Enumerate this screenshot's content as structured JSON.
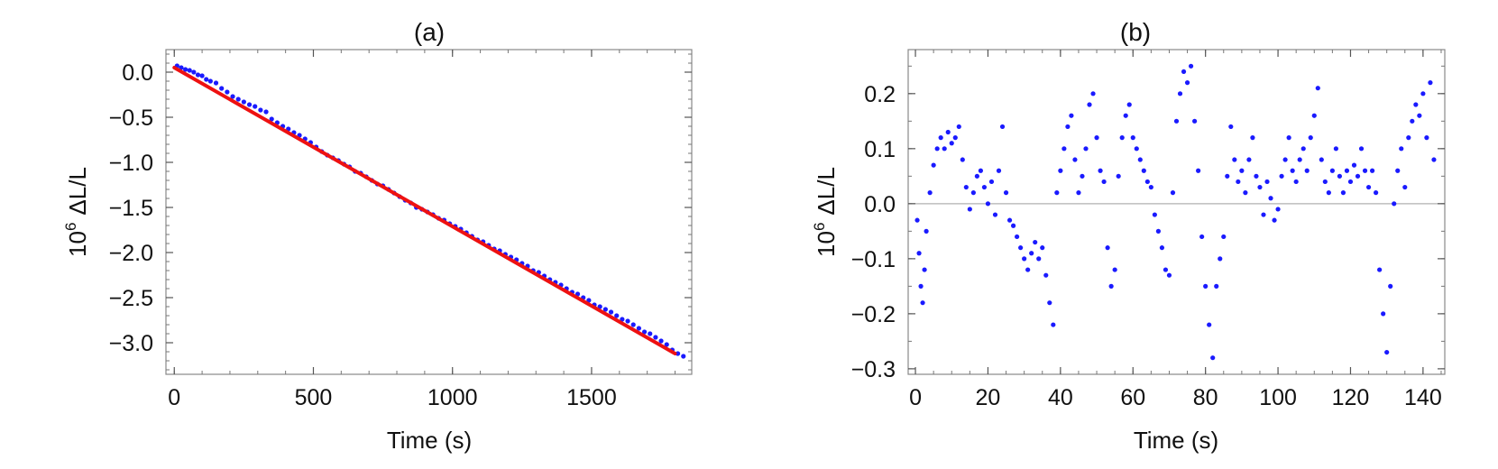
{
  "chart_data": [
    {
      "type": "scatter",
      "title": "(a)",
      "xlabel": "Time (s)",
      "ylabel": "10^6 ΔL/L",
      "ylabel_base": "10",
      "ylabel_exp": "6",
      "ylabel_rest": "ΔL/L",
      "xlim": [
        -30,
        1860
      ],
      "ylim": [
        -3.35,
        0.25
      ],
      "xticks": [
        0,
        500,
        1000,
        1500
      ],
      "xtick_labels": [
        "0",
        "500",
        "1000",
        "1500"
      ],
      "yticks": [
        0.0,
        -0.5,
        -1.0,
        -1.5,
        -2.0,
        -2.5,
        -3.0
      ],
      "ytick_labels": [
        "0.0",
        "−0.5",
        "−1.0",
        "−1.5",
        "−2.0",
        "−2.5",
        "−3.0"
      ],
      "grid": false,
      "frame": true,
      "series": [
        {
          "kind": "points",
          "color": "#1a1aff",
          "points": [
            [
              10,
              0.07
            ],
            [
              25,
              0.05
            ],
            [
              40,
              0.03
            ],
            [
              55,
              0.02
            ],
            [
              70,
              0.0
            ],
            [
              85,
              -0.03
            ],
            [
              100,
              -0.04
            ],
            [
              115,
              -0.08
            ],
            [
              130,
              -0.1
            ],
            [
              150,
              -0.12
            ],
            [
              170,
              -0.18
            ],
            [
              190,
              -0.22
            ],
            [
              210,
              -0.27
            ],
            [
              230,
              -0.3
            ],
            [
              250,
              -0.33
            ],
            [
              270,
              -0.36
            ],
            [
              290,
              -0.38
            ],
            [
              310,
              -0.42
            ],
            [
              330,
              -0.44
            ],
            [
              350,
              -0.52
            ],
            [
              370,
              -0.56
            ],
            [
              390,
              -0.6
            ],
            [
              410,
              -0.63
            ],
            [
              430,
              -0.67
            ],
            [
              450,
              -0.7
            ],
            [
              470,
              -0.74
            ],
            [
              490,
              -0.78
            ],
            [
              510,
              -0.83
            ],
            [
              530,
              -0.88
            ],
            [
              550,
              -0.92
            ],
            [
              570,
              -0.95
            ],
            [
              590,
              -0.98
            ],
            [
              610,
              -1.02
            ],
            [
              630,
              -1.05
            ],
            [
              650,
              -1.1
            ],
            [
              670,
              -1.12
            ],
            [
              690,
              -1.16
            ],
            [
              710,
              -1.2
            ],
            [
              730,
              -1.24
            ],
            [
              750,
              -1.26
            ],
            [
              770,
              -1.3
            ],
            [
              790,
              -1.34
            ],
            [
              810,
              -1.38
            ],
            [
              830,
              -1.42
            ],
            [
              850,
              -1.45
            ],
            [
              870,
              -1.5
            ],
            [
              890,
              -1.52
            ],
            [
              910,
              -1.55
            ],
            [
              930,
              -1.58
            ],
            [
              950,
              -1.62
            ],
            [
              970,
              -1.64
            ],
            [
              990,
              -1.68
            ],
            [
              1010,
              -1.71
            ],
            [
              1030,
              -1.74
            ],
            [
              1050,
              -1.78
            ],
            [
              1070,
              -1.82
            ],
            [
              1090,
              -1.86
            ],
            [
              1110,
              -1.88
            ],
            [
              1130,
              -1.92
            ],
            [
              1150,
              -1.96
            ],
            [
              1170,
              -1.98
            ],
            [
              1190,
              -2.02
            ],
            [
              1210,
              -2.05
            ],
            [
              1230,
              -2.08
            ],
            [
              1250,
              -2.12
            ],
            [
              1270,
              -2.15
            ],
            [
              1290,
              -2.2
            ],
            [
              1310,
              -2.22
            ],
            [
              1330,
              -2.26
            ],
            [
              1350,
              -2.3
            ],
            [
              1370,
              -2.33
            ],
            [
              1390,
              -2.36
            ],
            [
              1410,
              -2.4
            ],
            [
              1430,
              -2.44
            ],
            [
              1450,
              -2.46
            ],
            [
              1470,
              -2.5
            ],
            [
              1490,
              -2.53
            ],
            [
              1510,
              -2.58
            ],
            [
              1530,
              -2.6
            ],
            [
              1550,
              -2.63
            ],
            [
              1570,
              -2.66
            ],
            [
              1590,
              -2.7
            ],
            [
              1610,
              -2.74
            ],
            [
              1630,
              -2.76
            ],
            [
              1650,
              -2.8
            ],
            [
              1670,
              -2.84
            ],
            [
              1690,
              -2.88
            ],
            [
              1710,
              -2.9
            ],
            [
              1730,
              -2.94
            ],
            [
              1750,
              -2.98
            ],
            [
              1770,
              -3.02
            ],
            [
              1790,
              -3.08
            ],
            [
              1810,
              -3.12
            ],
            [
              1830,
              -3.15
            ]
          ]
        },
        {
          "kind": "fit-line",
          "color": "#ee1111",
          "x": [
            0,
            1800
          ],
          "y": [
            0.05,
            -3.12
          ]
        }
      ]
    },
    {
      "type": "scatter",
      "title": "(b)",
      "xlabel": "Time (s)",
      "ylabel": "10^6 ΔL/L",
      "ylabel_base": "10",
      "ylabel_exp": "6",
      "ylabel_rest": "ΔL/L",
      "xlim": [
        -2,
        146
      ],
      "ylim": [
        -0.31,
        0.28
      ],
      "xticks": [
        0,
        20,
        40,
        60,
        80,
        100,
        120,
        140
      ],
      "xtick_labels": [
        "0",
        "20",
        "40",
        "60",
        "80",
        "100",
        "120",
        "140"
      ],
      "yticks": [
        0.2,
        0.1,
        0.0,
        -0.1,
        -0.2,
        -0.3
      ],
      "ytick_labels": [
        "0.2",
        "0.1",
        "0.0",
        "−0.1",
        "−0.2",
        "−0.3"
      ],
      "reference_line": 0.0,
      "grid": false,
      "frame": true,
      "series": [
        {
          "kind": "points",
          "color": "#1a1aff",
          "points": [
            [
              0.5,
              -0.03
            ],
            [
              1,
              -0.09
            ],
            [
              1.5,
              -0.15
            ],
            [
              2,
              -0.18
            ],
            [
              2.5,
              -0.12
            ],
            [
              3,
              -0.05
            ],
            [
              4,
              0.02
            ],
            [
              5,
              0.07
            ],
            [
              6,
              0.1
            ],
            [
              7,
              0.12
            ],
            [
              8,
              0.1
            ],
            [
              9,
              0.13
            ],
            [
              10,
              0.11
            ],
            [
              11,
              0.12
            ],
            [
              12,
              0.14
            ],
            [
              13,
              0.08
            ],
            [
              14,
              0.03
            ],
            [
              15,
              -0.01
            ],
            [
              16,
              0.02
            ],
            [
              17,
              0.05
            ],
            [
              18,
              0.06
            ],
            [
              19,
              0.03
            ],
            [
              20,
              0.0
            ],
            [
              21,
              0.04
            ],
            [
              22,
              -0.02
            ],
            [
              23,
              0.06
            ],
            [
              24,
              0.14
            ],
            [
              25,
              0.02
            ],
            [
              26,
              -0.03
            ],
            [
              27,
              -0.04
            ],
            [
              28,
              -0.06
            ],
            [
              29,
              -0.08
            ],
            [
              30,
              -0.1
            ],
            [
              31,
              -0.12
            ],
            [
              32,
              -0.09
            ],
            [
              33,
              -0.07
            ],
            [
              34,
              -0.1
            ],
            [
              35,
              -0.08
            ],
            [
              36,
              -0.13
            ],
            [
              37,
              -0.18
            ],
            [
              38,
              -0.22
            ],
            [
              39,
              0.02
            ],
            [
              40,
              0.06
            ],
            [
              41,
              0.1
            ],
            [
              42,
              0.14
            ],
            [
              43,
              0.16
            ],
            [
              44,
              0.08
            ],
            [
              45,
              0.02
            ],
            [
              46,
              0.05
            ],
            [
              47,
              0.1
            ],
            [
              48,
              0.18
            ],
            [
              49,
              0.2
            ],
            [
              50,
              0.12
            ],
            [
              51,
              0.06
            ],
            [
              52,
              0.04
            ],
            [
              53,
              -0.08
            ],
            [
              54,
              -0.15
            ],
            [
              55,
              -0.12
            ],
            [
              56,
              0.05
            ],
            [
              57,
              0.12
            ],
            [
              58,
              0.16
            ],
            [
              59,
              0.18
            ],
            [
              60,
              0.12
            ],
            [
              61,
              0.1
            ],
            [
              62,
              0.08
            ],
            [
              63,
              0.06
            ],
            [
              64,
              0.04
            ],
            [
              65,
              0.03
            ],
            [
              66,
              -0.02
            ],
            [
              67,
              -0.05
            ],
            [
              68,
              -0.08
            ],
            [
              69,
              -0.12
            ],
            [
              70,
              -0.13
            ],
            [
              71,
              0.02
            ],
            [
              72,
              0.15
            ],
            [
              73,
              0.2
            ],
            [
              74,
              0.24
            ],
            [
              75,
              0.22
            ],
            [
              76,
              0.25
            ],
            [
              77,
              0.15
            ],
            [
              78,
              0.06
            ],
            [
              79,
              -0.06
            ],
            [
              80,
              -0.15
            ],
            [
              81,
              -0.22
            ],
            [
              82,
              -0.28
            ],
            [
              83,
              -0.15
            ],
            [
              84,
              -0.1
            ],
            [
              85,
              -0.06
            ],
            [
              86,
              0.05
            ],
            [
              87,
              0.14
            ],
            [
              88,
              0.08
            ],
            [
              89,
              0.04
            ],
            [
              90,
              0.06
            ],
            [
              91,
              0.02
            ],
            [
              92,
              0.08
            ],
            [
              93,
              0.12
            ],
            [
              94,
              0.05
            ],
            [
              95,
              0.03
            ],
            [
              96,
              -0.02
            ],
            [
              97,
              0.04
            ],
            [
              98,
              0.01
            ],
            [
              99,
              -0.03
            ],
            [
              100,
              -0.01
            ],
            [
              101,
              0.05
            ],
            [
              102,
              0.08
            ],
            [
              103,
              0.12
            ],
            [
              104,
              0.06
            ],
            [
              105,
              0.04
            ],
            [
              106,
              0.08
            ],
            [
              107,
              0.1
            ],
            [
              108,
              0.06
            ],
            [
              109,
              0.12
            ],
            [
              110,
              0.16
            ],
            [
              111,
              0.21
            ],
            [
              112,
              0.08
            ],
            [
              113,
              0.04
            ],
            [
              114,
              0.02
            ],
            [
              115,
              0.06
            ],
            [
              116,
              0.1
            ],
            [
              117,
              0.05
            ],
            [
              118,
              0.02
            ],
            [
              119,
              0.06
            ],
            [
              120,
              0.04
            ],
            [
              121,
              0.07
            ],
            [
              122,
              0.05
            ],
            [
              123,
              0.1
            ],
            [
              124,
              0.06
            ],
            [
              125,
              0.03
            ],
            [
              126,
              0.06
            ],
            [
              127,
              0.02
            ],
            [
              128,
              -0.12
            ],
            [
              129,
              -0.2
            ],
            [
              130,
              -0.27
            ],
            [
              131,
              -0.15
            ],
            [
              132,
              0.0
            ],
            [
              133,
              0.06
            ],
            [
              134,
              0.1
            ],
            [
              135,
              0.03
            ],
            [
              136,
              0.12
            ],
            [
              137,
              0.15
            ],
            [
              138,
              0.18
            ],
            [
              139,
              0.16
            ],
            [
              140,
              0.2
            ],
            [
              141,
              0.12
            ],
            [
              142,
              0.22
            ],
            [
              143,
              0.08
            ]
          ]
        }
      ]
    }
  ]
}
